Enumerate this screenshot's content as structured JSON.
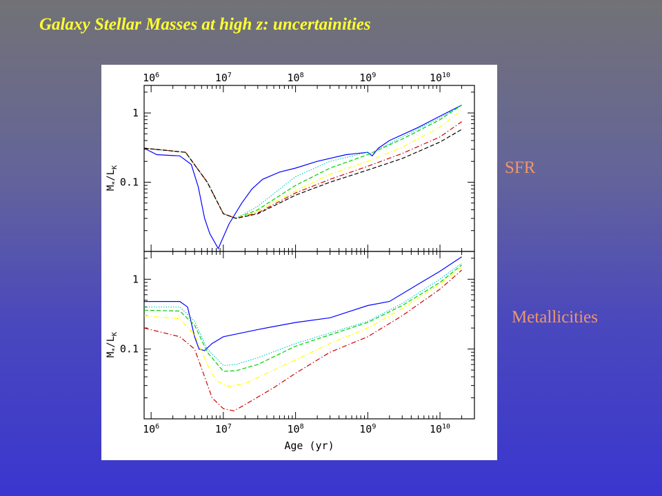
{
  "slide": {
    "title": "Galaxy Stellar Masses at high z: uncertainities",
    "label_sfr": "SFR",
    "label_metallicities": "Metallicities"
  },
  "colors": {
    "title": "#ffff33",
    "side_labels": "#f0966a",
    "background_top": "#727276",
    "background_bottom": "#3a36cf"
  },
  "chart_data": [
    {
      "type": "line",
      "panel": "SFR",
      "xlabel": "",
      "ylabel": "M*/LK",
      "xscale": "log",
      "yscale": "log",
      "xlim": [
        800000,
        30000000000
      ],
      "ylim": [
        0.01,
        2.5
      ],
      "x_tick_labels": [
        "10^6",
        "10^7",
        "10^8",
        "10^9",
        "10^10"
      ],
      "y_tick_labels": [
        "1",
        "0.1"
      ],
      "x_tick_label_position": "top",
      "series": [
        {
          "color": "#0000ff",
          "style": "solid",
          "points": [
            [
              800000,
              0.31
            ],
            [
              1200000,
              0.25
            ],
            [
              2500000,
              0.24
            ],
            [
              3600000,
              0.18
            ],
            [
              4500000,
              0.085
            ],
            [
              5500000,
              0.03
            ],
            [
              6500000,
              0.018
            ],
            [
              8500000,
              0.011
            ],
            [
              12000000,
              0.025
            ],
            [
              18000000,
              0.05
            ],
            [
              25000000,
              0.08
            ],
            [
              35000000,
              0.11
            ],
            [
              60000000,
              0.14
            ],
            [
              100000000,
              0.16
            ],
            [
              200000000,
              0.2
            ],
            [
              500000000,
              0.25
            ],
            [
              1000000000,
              0.27
            ],
            [
              1150000000,
              0.24
            ],
            [
              1400000000,
              0.31
            ],
            [
              2000000000,
              0.4
            ],
            [
              5000000000,
              0.62
            ],
            [
              10000000000,
              0.9
            ],
            [
              20000000000,
              1.3
            ]
          ]
        },
        {
          "color": "#00cccc",
          "style": "dotted",
          "points": [
            [
              800000,
              0.31
            ],
            [
              3000000,
              0.27
            ],
            [
              6000000,
              0.1
            ],
            [
              10000000,
              0.035
            ],
            [
              15000000,
              0.03
            ],
            [
              30000000,
              0.045
            ],
            [
              100000000,
              0.12
            ],
            [
              300000000,
              0.2
            ],
            [
              1000000000,
              0.27
            ],
            [
              1100000000,
              0.26
            ],
            [
              3000000000,
              0.45
            ],
            [
              10000000000,
              0.85
            ],
            [
              20000000000,
              1.3
            ]
          ]
        },
        {
          "color": "#00cc00",
          "style": "dashed",
          "points": [
            [
              800000,
              0.31
            ],
            [
              3000000,
              0.27
            ],
            [
              6000000,
              0.1
            ],
            [
              10000000,
              0.035
            ],
            [
              15000000,
              0.03
            ],
            [
              30000000,
              0.04
            ],
            [
              100000000,
              0.09
            ],
            [
              300000000,
              0.16
            ],
            [
              1000000000,
              0.25
            ],
            [
              3000000000,
              0.42
            ],
            [
              10000000000,
              0.8
            ],
            [
              20000000000,
              1.3
            ]
          ]
        },
        {
          "color": "#ffff00",
          "style": "dashdot",
          "points": [
            [
              800000,
              0.31
            ],
            [
              3000000,
              0.27
            ],
            [
              6000000,
              0.1
            ],
            [
              10000000,
              0.035
            ],
            [
              15000000,
              0.03
            ],
            [
              30000000,
              0.038
            ],
            [
              100000000,
              0.075
            ],
            [
              300000000,
              0.13
            ],
            [
              1000000000,
              0.2
            ],
            [
              3000000000,
              0.32
            ],
            [
              10000000000,
              0.62
            ],
            [
              20000000000,
              1.1
            ]
          ]
        },
        {
          "color": "#cc0000",
          "style": "dashdot",
          "points": [
            [
              800000,
              0.31
            ],
            [
              3000000,
              0.27
            ],
            [
              6000000,
              0.1
            ],
            [
              10000000,
              0.035
            ],
            [
              15000000,
              0.03
            ],
            [
              30000000,
              0.036
            ],
            [
              100000000,
              0.07
            ],
            [
              300000000,
              0.11
            ],
            [
              1000000000,
              0.17
            ],
            [
              3000000000,
              0.26
            ],
            [
              10000000000,
              0.45
            ],
            [
              20000000000,
              0.75
            ]
          ]
        },
        {
          "color": "#000000",
          "style": "dashed",
          "points": [
            [
              800000,
              0.31
            ],
            [
              3000000,
              0.27
            ],
            [
              6000000,
              0.1
            ],
            [
              10000000,
              0.035
            ],
            [
              15000000,
              0.03
            ],
            [
              30000000,
              0.035
            ],
            [
              100000000,
              0.065
            ],
            [
              300000000,
              0.1
            ],
            [
              1000000000,
              0.15
            ],
            [
              3000000000,
              0.22
            ],
            [
              10000000000,
              0.38
            ],
            [
              20000000000,
              0.58
            ]
          ]
        }
      ]
    },
    {
      "type": "line",
      "panel": "Metallicities",
      "xlabel": "Age (yr)",
      "ylabel": "M*/LK",
      "xscale": "log",
      "yscale": "log",
      "xlim": [
        800000,
        30000000000
      ],
      "ylim": [
        0.01,
        2.5
      ],
      "x_tick_labels": [
        "10^6",
        "10^7",
        "10^8",
        "10^9",
        "10^10"
      ],
      "y_tick_labels": [
        "1",
        "0.1"
      ],
      "x_tick_label_position": "bottom",
      "series": [
        {
          "color": "#0000ff",
          "style": "solid",
          "points": [
            [
              800000,
              0.48
            ],
            [
              2500000,
              0.48
            ],
            [
              3200000,
              0.4
            ],
            [
              4000000,
              0.15
            ],
            [
              4600000,
              0.1
            ],
            [
              5500000,
              0.095
            ],
            [
              7000000,
              0.12
            ],
            [
              10000000,
              0.15
            ],
            [
              30000000,
              0.19
            ],
            [
              100000000,
              0.24
            ],
            [
              300000000,
              0.28
            ],
            [
              1000000000,
              0.42
            ],
            [
              2000000000,
              0.48
            ],
            [
              5000000000,
              0.85
            ],
            [
              10000000000,
              1.3
            ],
            [
              20000000000,
              2.1
            ]
          ]
        },
        {
          "color": "#00cccc",
          "style": "dotted",
          "points": [
            [
              800000,
              0.4
            ],
            [
              2500000,
              0.4
            ],
            [
              4000000,
              0.25
            ],
            [
              6000000,
              0.1
            ],
            [
              10000000,
              0.058
            ],
            [
              15000000,
              0.06
            ],
            [
              30000000,
              0.075
            ],
            [
              100000000,
              0.12
            ],
            [
              300000000,
              0.17
            ],
            [
              1000000000,
              0.25
            ],
            [
              3000000000,
              0.45
            ],
            [
              10000000000,
              1.0
            ],
            [
              20000000000,
              1.7
            ]
          ]
        },
        {
          "color": "#00cc00",
          "style": "dashed",
          "points": [
            [
              800000,
              0.36
            ],
            [
              2500000,
              0.35
            ],
            [
              4000000,
              0.22
            ],
            [
              6000000,
              0.09
            ],
            [
              10000000,
              0.048
            ],
            [
              15000000,
              0.049
            ],
            [
              30000000,
              0.06
            ],
            [
              100000000,
              0.11
            ],
            [
              300000000,
              0.16
            ],
            [
              1000000000,
              0.24
            ],
            [
              3000000000,
              0.42
            ],
            [
              10000000000,
              0.9
            ],
            [
              20000000000,
              1.6
            ]
          ]
        },
        {
          "color": "#ffff00",
          "style": "dashdot",
          "points": [
            [
              800000,
              0.3
            ],
            [
              2500000,
              0.27
            ],
            [
              4000000,
              0.16
            ],
            [
              6000000,
              0.06
            ],
            [
              8000000,
              0.035
            ],
            [
              12000000,
              0.029
            ],
            [
              20000000,
              0.032
            ],
            [
              50000000,
              0.05
            ],
            [
              100000000,
              0.07
            ],
            [
              300000000,
              0.12
            ],
            [
              1000000000,
              0.2
            ],
            [
              3000000000,
              0.38
            ],
            [
              10000000000,
              0.85
            ],
            [
              20000000000,
              1.5
            ]
          ]
        },
        {
          "color": "#cc0000",
          "style": "dashdot",
          "points": [
            [
              800000,
              0.2
            ],
            [
              2500000,
              0.15
            ],
            [
              4000000,
              0.1
            ],
            [
              5500000,
              0.04
            ],
            [
              7000000,
              0.02
            ],
            [
              10000000,
              0.014
            ],
            [
              14000000,
              0.013
            ],
            [
              20000000,
              0.016
            ],
            [
              50000000,
              0.028
            ],
            [
              100000000,
              0.045
            ],
            [
              300000000,
              0.09
            ],
            [
              1000000000,
              0.15
            ],
            [
              3000000000,
              0.3
            ],
            [
              10000000000,
              0.72
            ],
            [
              20000000000,
              1.35
            ]
          ]
        }
      ]
    }
  ]
}
